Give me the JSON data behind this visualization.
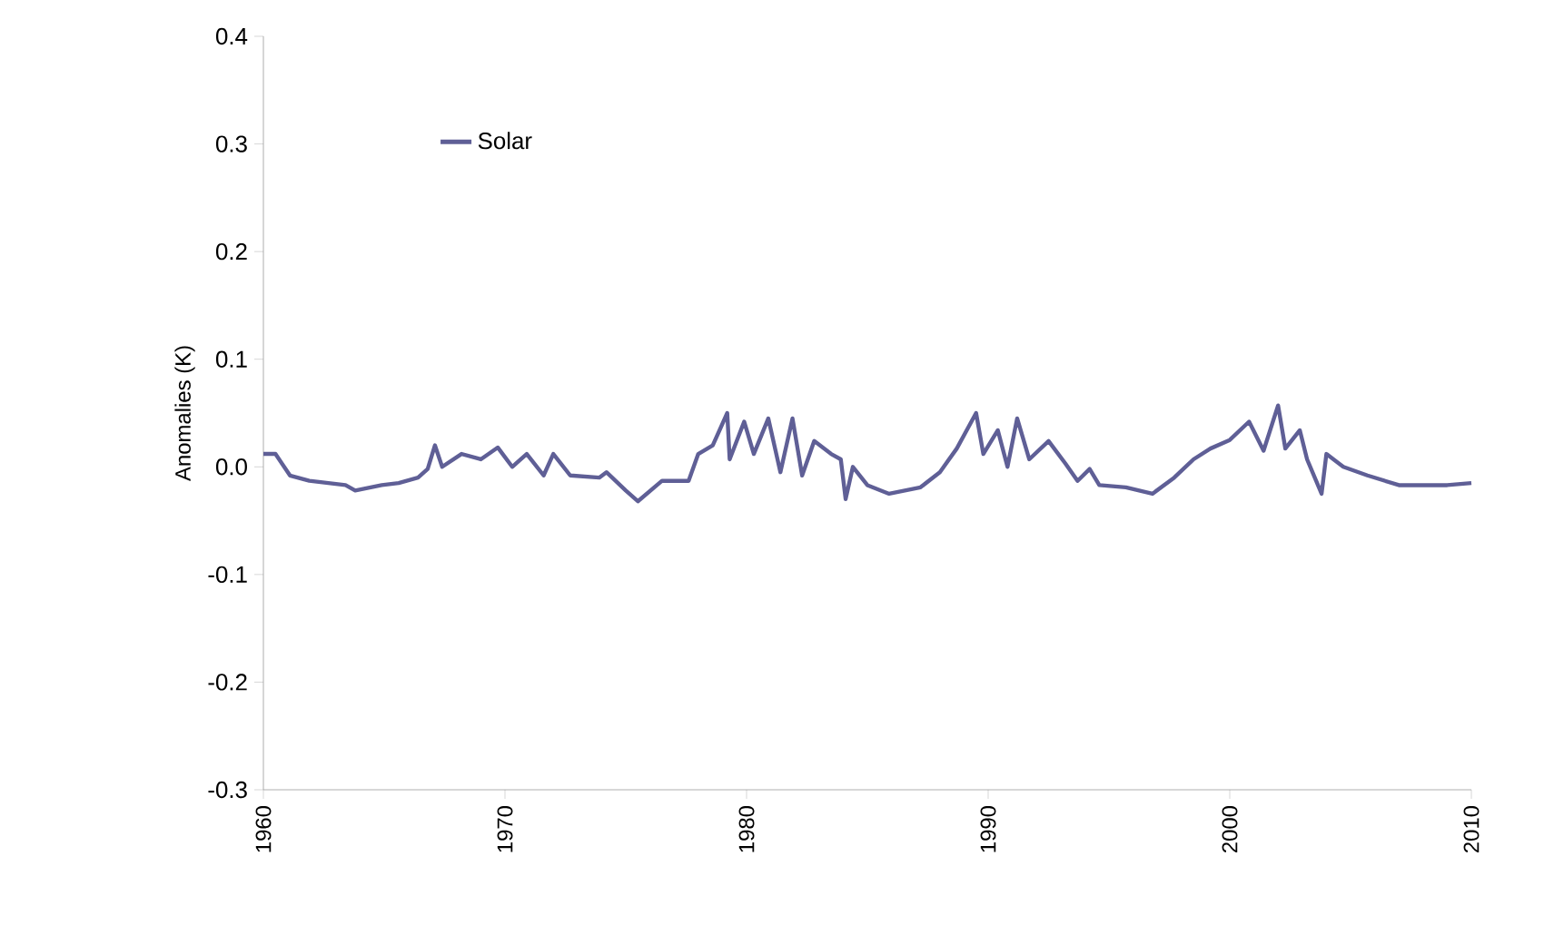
{
  "chart_data": {
    "type": "line",
    "ylabel": "Anomalies (K)",
    "x": [
      1960.0,
      1960.5,
      1961.1,
      1961.9,
      1963.4,
      1963.8,
      1964.9,
      1965.6,
      1966.4,
      1966.8,
      1967.1,
      1967.4,
      1968.2,
      1969.0,
      1969.7,
      1970.3,
      1970.9,
      1971.6,
      1972.0,
      1972.7,
      1973.9,
      1974.2,
      1975.0,
      1975.5,
      1976.5,
      1977.6,
      1978.0,
      1978.6,
      1979.2,
      1979.3,
      1979.9,
      1980.3,
      1980.9,
      1981.4,
      1981.9,
      1982.3,
      1982.8,
      1983.5,
      1983.9,
      1984.1,
      1984.4,
      1985.0,
      1985.9,
      1987.2,
      1988.0,
      1988.7,
      1989.5,
      1989.8,
      1990.4,
      1990.8,
      1991.2,
      1991.7,
      1992.5,
      1993.2,
      1993.7,
      1994.2,
      1994.6,
      1995.7,
      1996.8,
      1997.7,
      1998.5,
      1999.2,
      2000.0,
      2000.8,
      2001.4,
      2002.0,
      2002.3,
      2002.9,
      2003.2,
      2003.8,
      2004.0,
      2004.7,
      2005.7,
      2007.0,
      2009.0,
      2010.0
    ],
    "series": [
      {
        "name": "Solar",
        "color": "#5f5f96",
        "values": [
          0.012,
          0.012,
          -0.008,
          -0.013,
          -0.017,
          -0.022,
          -0.017,
          -0.015,
          -0.01,
          -0.002,
          0.02,
          0.0,
          0.012,
          0.007,
          0.018,
          0.0,
          0.012,
          -0.008,
          0.012,
          -0.008,
          -0.01,
          -0.005,
          -0.022,
          -0.032,
          -0.013,
          -0.013,
          0.012,
          0.02,
          0.05,
          0.007,
          0.042,
          0.012,
          0.045,
          -0.005,
          0.045,
          -0.008,
          0.024,
          0.012,
          0.007,
          -0.03,
          0.0,
          -0.017,
          -0.025,
          -0.019,
          -0.005,
          0.017,
          0.05,
          0.012,
          0.034,
          0.0,
          0.045,
          0.007,
          0.024,
          0.003,
          -0.013,
          -0.002,
          -0.017,
          -0.019,
          -0.025,
          -0.01,
          0.007,
          0.017,
          0.025,
          0.042,
          0.015,
          0.057,
          0.017,
          0.034,
          0.007,
          -0.025,
          0.012,
          0.0,
          -0.008,
          -0.017,
          -0.017,
          -0.015
        ]
      }
    ],
    "xlim": [
      1960,
      2010
    ],
    "xticks": [
      1960,
      1970,
      1980,
      1990,
      2000,
      2010
    ],
    "ylim": [
      -0.3,
      0.4
    ],
    "yticks": [
      {
        "value": -0.3,
        "label": "-0.3"
      },
      {
        "value": -0.2,
        "label": "-0.2"
      },
      {
        "value": -0.1,
        "label": "-0.1"
      },
      {
        "value": 0,
        "label": "0.0"
      },
      {
        "value": 0.1,
        "label": "0.1"
      },
      {
        "value": 0.2,
        "label": "0.2"
      },
      {
        "value": 0.3,
        "label": "0.3"
      },
      {
        "value": 0.4,
        "label": "0.4"
      }
    ],
    "legend": "top left",
    "grid": false,
    "marker": "none",
    "line_style": "solid"
  }
}
